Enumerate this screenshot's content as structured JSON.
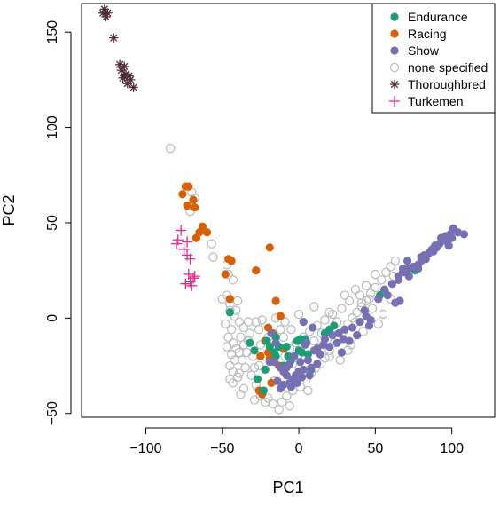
{
  "chart_data": {
    "type": "scatter",
    "title": "",
    "xlabel": "PC1",
    "ylabel": "PC2",
    "xlim": [
      -142,
      128
    ],
    "ylim": [
      -52,
      165
    ],
    "xticks": [
      -100,
      -50,
      0,
      50,
      100
    ],
    "xtick_labels": [
      "−100",
      "−50",
      "0",
      "50",
      "100"
    ],
    "yticks": [
      -50,
      0,
      50,
      100,
      150
    ],
    "ytick_labels": [
      "−50",
      "0",
      "50",
      "100",
      "150"
    ],
    "grid": false,
    "legend_position": "top-right",
    "series": [
      {
        "name": "Endurance",
        "color": "#1b9e77",
        "marker": "filled-circle",
        "points": [
          [
            -19,
            -15
          ],
          [
            -16,
            -18
          ],
          [
            -10,
            -25
          ],
          [
            -5,
            -22
          ],
          [
            -1,
            -12
          ],
          [
            1,
            -11
          ],
          [
            4,
            -11
          ],
          [
            -8,
            -15
          ],
          [
            2,
            -18
          ],
          [
            8,
            -27
          ],
          [
            17,
            -8
          ],
          [
            20,
            -6
          ],
          [
            23,
            -4
          ],
          [
            53,
            12
          ],
          [
            -45,
            3
          ],
          [
            -23,
            -38
          ],
          [
            -27,
            -32
          ],
          [
            -22,
            -27
          ],
          [
            -29,
            -17
          ],
          [
            -21,
            -12
          ],
          [
            -15,
            -20
          ],
          [
            -13,
            -15
          ],
          [
            -7,
            -20
          ],
          [
            0,
            -17
          ],
          [
            6,
            -19
          ],
          [
            -15,
            -10
          ],
          [
            76,
            25
          ],
          [
            -32,
            -13
          ]
        ]
      },
      {
        "name": "Racing",
        "color": "#d95f02",
        "marker": "filled-circle",
        "points": [
          [
            -74,
            69
          ],
          [
            -72,
            69
          ],
          [
            -76,
            65
          ],
          [
            -68,
            58
          ],
          [
            -73,
            59
          ],
          [
            -69,
            62
          ],
          [
            -60,
            45
          ],
          [
            -63,
            48
          ],
          [
            -65,
            45
          ],
          [
            -67,
            42
          ],
          [
            -46,
            31
          ],
          [
            -44,
            30
          ],
          [
            -48,
            23
          ],
          [
            -19,
            37
          ],
          [
            -28,
            25
          ],
          [
            -45,
            10
          ],
          [
            -15,
            9
          ],
          [
            -12,
            1
          ],
          [
            -20,
            -5
          ],
          [
            -17,
            -8
          ],
          [
            -22,
            -12
          ],
          [
            -10,
            -16
          ],
          [
            -25,
            -20
          ],
          [
            -19,
            -21
          ],
          [
            -22,
            -27
          ],
          [
            -26,
            -38
          ],
          [
            -24,
            -40
          ],
          [
            -18,
            -34
          ],
          [
            -13,
            -25
          ],
          [
            -20,
            -18
          ]
        ]
      },
      {
        "name": "Show",
        "color": "#7570b3",
        "marker": "filled-circle",
        "points": [
          [
            101,
            47
          ],
          [
            104,
            45
          ],
          [
            108,
            44
          ],
          [
            99,
            44
          ],
          [
            96,
            43
          ],
          [
            93,
            42
          ],
          [
            100,
            42
          ],
          [
            97,
            40
          ],
          [
            92,
            39
          ],
          [
            95,
            41
          ],
          [
            98,
            38
          ],
          [
            90,
            37
          ],
          [
            87,
            36
          ],
          [
            85,
            34
          ],
          [
            88,
            35
          ],
          [
            82,
            33
          ],
          [
            83,
            31
          ],
          [
            80,
            30
          ],
          [
            78,
            28
          ],
          [
            75,
            27
          ],
          [
            72,
            26
          ],
          [
            70,
            24
          ],
          [
            68,
            24
          ],
          [
            65,
            22
          ],
          [
            80,
            32
          ],
          [
            78,
            26
          ],
          [
            71,
            30
          ],
          [
            72,
            22
          ],
          [
            65,
            20
          ],
          [
            61,
            18
          ],
          [
            56,
            15
          ],
          [
            52,
            10
          ],
          [
            66,
            9
          ],
          [
            63,
            8
          ],
          [
            58,
            12
          ],
          [
            47,
            -1
          ],
          [
            44,
            1
          ],
          [
            43,
            4
          ],
          [
            40,
            -2
          ],
          [
            35,
            -5
          ],
          [
            30,
            -6
          ],
          [
            26,
            -8
          ],
          [
            29,
            -11
          ],
          [
            22,
            -9
          ],
          [
            17,
            -11
          ],
          [
            16,
            -14
          ],
          [
            10,
            -17
          ],
          [
            14,
            -19
          ],
          [
            6,
            -22
          ],
          [
            8,
            -26
          ],
          [
            3,
            -27
          ],
          [
            0,
            -28
          ],
          [
            -2,
            -30
          ],
          [
            -4,
            -32
          ],
          [
            -6,
            -34
          ],
          [
            -8,
            -30
          ],
          [
            -10,
            -28
          ],
          [
            -12,
            -26
          ],
          [
            -16,
            -23
          ],
          [
            -14,
            -33
          ],
          [
            -6,
            -24
          ],
          [
            4,
            -14
          ],
          [
            12,
            -16
          ],
          [
            9,
            -5
          ],
          [
            3,
            -2
          ],
          [
            -15,
            -13
          ],
          [
            -18,
            -8
          ],
          [
            5,
            -13
          ],
          [
            20,
            -15
          ],
          [
            28,
            -18
          ],
          [
            33,
            -12
          ],
          [
            38,
            -9
          ],
          [
            46,
            -4
          ],
          [
            25,
            -13
          ],
          [
            -3,
            -20
          ],
          [
            1,
            -23
          ],
          [
            12,
            -24
          ],
          [
            7,
            -30
          ],
          [
            -8,
            -26
          ],
          [
            -19,
            -23
          ],
          [
            -10,
            -35
          ],
          [
            -5,
            -36
          ],
          [
            -12,
            -37
          ],
          [
            -1,
            -34
          ],
          [
            2,
            -31
          ],
          [
            68,
            26
          ],
          [
            89,
            38
          ],
          [
            86,
            35
          ]
        ]
      },
      {
        "name": "none specified",
        "color": "#bbbbbb",
        "marker": "open-circle",
        "points": [
          [
            -84,
            89
          ],
          [
            -70,
            66
          ],
          [
            -68,
            63
          ],
          [
            -70,
            59
          ],
          [
            -71,
            56
          ],
          [
            -57,
            39
          ],
          [
            -56,
            32
          ],
          [
            -47,
            28
          ],
          [
            -46,
            23
          ],
          [
            -43,
            20
          ],
          [
            -47,
            12
          ],
          [
            -45,
            7
          ],
          [
            -50,
            10
          ],
          [
            -45,
            4
          ],
          [
            -42,
            1
          ],
          [
            -48,
            -3
          ],
          [
            -44,
            -6
          ],
          [
            -46,
            -10
          ],
          [
            -43,
            -13
          ],
          [
            -41,
            -16
          ],
          [
            -44,
            -19
          ],
          [
            -42,
            -22
          ],
          [
            -45,
            -25
          ],
          [
            -43,
            -28
          ],
          [
            -40,
            -31
          ],
          [
            -43,
            -34
          ],
          [
            -38,
            -10
          ],
          [
            -36,
            -14
          ],
          [
            -39,
            -18
          ],
          [
            -37,
            -22
          ],
          [
            -35,
            -26
          ],
          [
            -39,
            -29
          ],
          [
            -36,
            -5
          ],
          [
            -32,
            -8
          ],
          [
            -33,
            -12
          ],
          [
            -30,
            -20
          ],
          [
            -28,
            -2
          ],
          [
            -24,
            -1
          ],
          [
            -26,
            -6
          ],
          [
            -31,
            -30
          ],
          [
            -28,
            -35
          ],
          [
            -25,
            -41
          ],
          [
            -29,
            -43
          ],
          [
            -22,
            -44
          ],
          [
            -17,
            -45
          ],
          [
            -13,
            -48
          ],
          [
            -11,
            -44
          ],
          [
            -8,
            -41
          ],
          [
            -4,
            -38
          ],
          [
            1,
            -36
          ],
          [
            5,
            -32
          ],
          [
            8,
            -29
          ],
          [
            11,
            -26
          ],
          [
            14,
            -24
          ],
          [
            17,
            -21
          ],
          [
            20,
            -17
          ],
          [
            23,
            -13
          ],
          [
            26,
            -10
          ],
          [
            29,
            -7
          ],
          [
            32,
            -3
          ],
          [
            35,
            0
          ],
          [
            38,
            3
          ],
          [
            41,
            6
          ],
          [
            44,
            9
          ],
          [
            47,
            13
          ],
          [
            50,
            16
          ],
          [
            54,
            20
          ],
          [
            57,
            24
          ],
          [
            60,
            27
          ],
          [
            63,
            30
          ],
          [
            50,
            23
          ],
          [
            44,
            17
          ],
          [
            40,
            12
          ],
          [
            33,
            9
          ],
          [
            28,
            5
          ],
          [
            22,
            2
          ],
          [
            17,
            -1
          ],
          [
            12,
            -4
          ],
          [
            7,
            -7
          ],
          [
            3,
            -10
          ],
          [
            -2,
            -13
          ],
          [
            -6,
            -16
          ],
          [
            -20,
            -10
          ],
          [
            -12,
            -6
          ],
          [
            -9,
            -2
          ],
          [
            -15,
            0
          ],
          [
            -18,
            -15
          ],
          [
            -22,
            -20
          ],
          [
            -26,
            -25
          ],
          [
            -9,
            -20
          ],
          [
            -4,
            -24
          ],
          [
            0,
            -19
          ],
          [
            15,
            -8
          ],
          [
            25,
            -2
          ],
          [
            30,
            12
          ],
          [
            37,
            15
          ],
          [
            41,
            8
          ],
          [
            48,
            5
          ],
          [
            52,
            -3
          ],
          [
            -38,
            -40
          ],
          [
            -33,
            -2
          ],
          [
            -29,
            -26
          ],
          [
            -16,
            -33
          ],
          [
            10,
            -12
          ],
          [
            20,
            -20
          ],
          [
            34,
            -14
          ],
          [
            55,
            2
          ],
          [
            46,
            10
          ],
          [
            20,
            3
          ],
          [
            10,
            6
          ],
          [
            0,
            2
          ],
          [
            -5,
            -6
          ],
          [
            -10,
            -10
          ],
          [
            -25,
            -14
          ],
          [
            -34,
            -18
          ],
          [
            -39,
            -2
          ],
          [
            -41,
            4
          ],
          [
            -47,
            -15
          ],
          [
            -45,
            -32
          ],
          [
            32,
            -17
          ],
          [
            6,
            -38
          ],
          [
            -6,
            -46
          ],
          [
            -20,
            -42
          ],
          [
            42,
            -7
          ],
          [
            56,
            14
          ],
          [
            60,
            10
          ],
          [
            62,
            22
          ],
          [
            37,
            -2
          ],
          [
            27,
            -22
          ],
          [
            -40,
            9
          ],
          [
            -36,
            -37
          ]
        ]
      },
      {
        "name": "Thoroughbred",
        "color": "#4e2b35",
        "marker": "asterisk",
        "points": [
          [
            -127,
            162
          ],
          [
            -125,
            160
          ],
          [
            -128,
            160
          ],
          [
            -126,
            158
          ],
          [
            -121,
            147
          ],
          [
            -117,
            133
          ],
          [
            -114,
            132
          ],
          [
            -116,
            130
          ],
          [
            -113,
            128
          ],
          [
            -115,
            126
          ],
          [
            -111,
            127
          ],
          [
            -110,
            125
          ],
          [
            -112,
            123
          ],
          [
            -108,
            121
          ],
          [
            -114,
            127
          ]
        ]
      },
      {
        "name": "Turkemen",
        "color": "#e7298a",
        "marker": "plus",
        "points": [
          [
            -77,
            46
          ],
          [
            -79,
            41
          ],
          [
            -80,
            39
          ],
          [
            -75,
            36
          ],
          [
            -73,
            33
          ],
          [
            -71,
            31
          ],
          [
            -72,
            23
          ],
          [
            -69,
            21
          ],
          [
            -68,
            22
          ],
          [
            -71,
            19
          ],
          [
            -74,
            18
          ],
          [
            -70,
            17
          ],
          [
            -73,
            40
          ]
        ]
      }
    ]
  },
  "legend": {
    "entries": [
      "Endurance",
      "Racing",
      "Show",
      "none specified",
      "Thoroughbred",
      "Turkemen"
    ]
  }
}
